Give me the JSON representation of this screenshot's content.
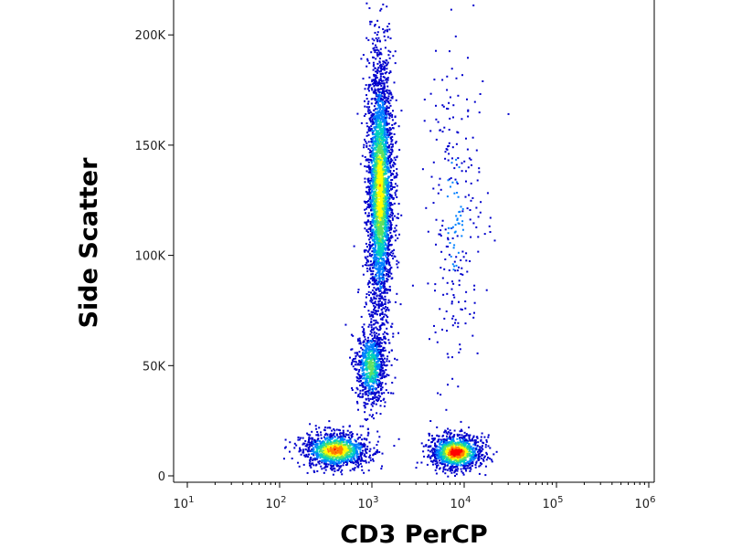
{
  "chart_data": {
    "type": "scatter",
    "title": "",
    "xlabel": "CD3 PerCP",
    "ylabel": "Side Scatter",
    "x_scale": "log",
    "xlim": [
      10,
      1000000
    ],
    "ylim": [
      0,
      215000
    ],
    "x_ticks": [
      {
        "value": 10,
        "base": "10",
        "exp": "1"
      },
      {
        "value": 100,
        "base": "10",
        "exp": "2"
      },
      {
        "value": 1000,
        "base": "10",
        "exp": "3"
      },
      {
        "value": 10000,
        "base": "10",
        "exp": "4"
      },
      {
        "value": 100000,
        "base": "10",
        "exp": "5"
      },
      {
        "value": 1000000,
        "base": "10",
        "exp": "6"
      }
    ],
    "y_ticks": [
      {
        "value": 0,
        "label": "0"
      },
      {
        "value": 50000,
        "label": "50K"
      },
      {
        "value": 100000,
        "label": "100K"
      },
      {
        "value": 150000,
        "label": "150K"
      },
      {
        "value": 200000,
        "label": "200K"
      }
    ],
    "grid": false,
    "legend": "none",
    "color_scale": [
      "#0000cc",
      "#0080ff",
      "#00d0c0",
      "#60e060",
      "#ffff00",
      "#ff8000",
      "#ff0000"
    ],
    "populations": [
      {
        "x_center": 1200,
        "y_center": 130000,
        "x_spread_log10": 0.07,
        "y_spread": 30000,
        "peak_density": "yellow"
      },
      {
        "x_center": 950,
        "y_center": 50000,
        "x_spread_log10": 0.08,
        "y_spread": 9000,
        "peak_density": "green"
      },
      {
        "x_center": 400,
        "y_center": 12000,
        "x_spread_log10": 0.18,
        "y_spread": 4000,
        "peak_density": "orange"
      },
      {
        "x_center": 8000,
        "y_center": 11000,
        "x_spread_log10": 0.14,
        "y_spread": 4000,
        "peak_density": "red"
      },
      {
        "x_center": 8000,
        "y_center": 120000,
        "x_spread_log10": 0.15,
        "y_spread": 35000,
        "peak_density": "blue"
      }
    ]
  }
}
